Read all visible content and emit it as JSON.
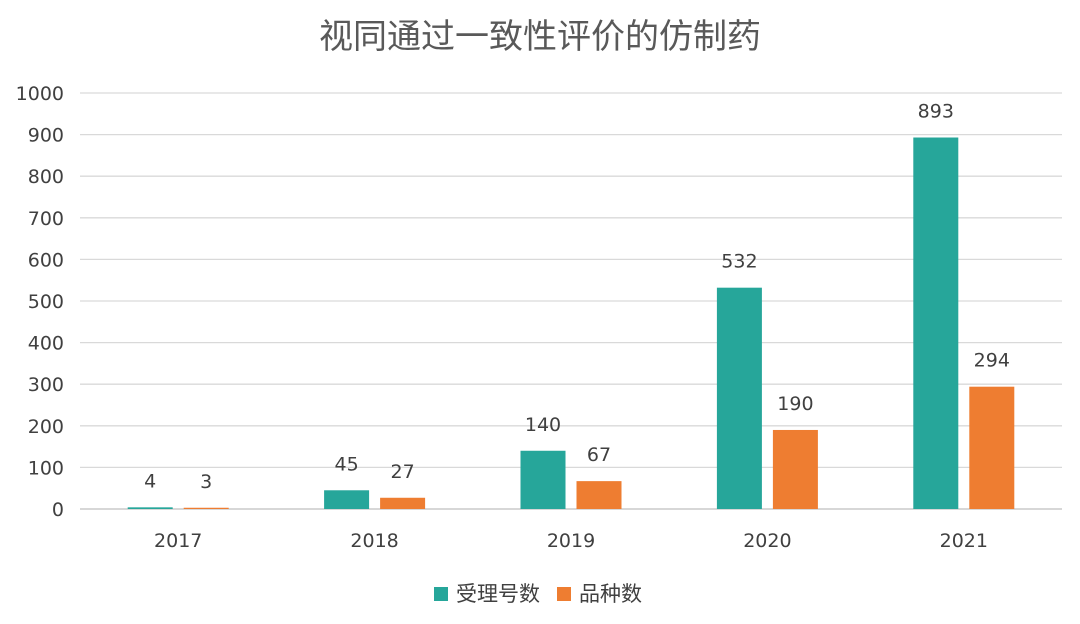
{
  "chart_data": {
    "type": "bar",
    "title": "视同通过一致性评价的仿制药",
    "categories": [
      "2017",
      "2018",
      "2019",
      "2020",
      "2021"
    ],
    "series": [
      {
        "name": "受理号数",
        "values": [
          4,
          45,
          140,
          532,
          893
        ],
        "color": "#26a69a"
      },
      {
        "name": "品种数",
        "values": [
          3,
          27,
          67,
          190,
          294
        ],
        "color": "#ee7d31"
      }
    ],
    "ylim": [
      0,
      1000
    ],
    "yticks": [
      0,
      100,
      200,
      300,
      400,
      500,
      600,
      700,
      800,
      900,
      1000
    ],
    "grid": true,
    "legend_position": "bottom",
    "data_labels": true,
    "xlabel": "",
    "ylabel": ""
  }
}
